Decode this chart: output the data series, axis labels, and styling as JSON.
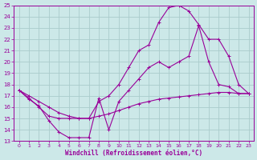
{
  "xlabel": "Windchill (Refroidissement éolien,°C)",
  "bg_color": "#cce8e8",
  "line_color": "#990099",
  "grid_color": "#aacccc",
  "xlim": [
    -0.5,
    23.5
  ],
  "ylim": [
    13,
    25
  ],
  "yticks": [
    13,
    14,
    15,
    16,
    17,
    18,
    19,
    20,
    21,
    22,
    23,
    24,
    25
  ],
  "xticks": [
    0,
    1,
    2,
    3,
    4,
    5,
    6,
    7,
    8,
    9,
    10,
    11,
    12,
    13,
    14,
    15,
    16,
    17,
    18,
    19,
    20,
    21,
    22,
    23
  ],
  "curve1_x": [
    0,
    1,
    2,
    3,
    4,
    5,
    6,
    7,
    8,
    9,
    10,
    11,
    12,
    13,
    14,
    15,
    16,
    17,
    18,
    19,
    20,
    21,
    22,
    23
  ],
  "curve1_y": [
    17.5,
    16.7,
    16.1,
    14.8,
    13.8,
    13.3,
    13.3,
    13.3,
    16.8,
    14.0,
    16.5,
    17.5,
    18.5,
    19.5,
    20.0,
    19.5,
    20.0,
    20.5,
    23.2,
    20.0,
    18.0,
    17.8,
    17.2,
    17.2
  ],
  "curve2_x": [
    0,
    1,
    2,
    3,
    4,
    5,
    6,
    7,
    8,
    9,
    10,
    11,
    12,
    13,
    14,
    15,
    16,
    17,
    18,
    19,
    20,
    21,
    22,
    23
  ],
  "curve2_y": [
    17.5,
    16.8,
    16.0,
    15.2,
    15.0,
    15.0,
    15.0,
    15.0,
    15.2,
    15.4,
    15.7,
    16.0,
    16.3,
    16.5,
    16.7,
    16.8,
    16.9,
    17.0,
    17.1,
    17.2,
    17.3,
    17.3,
    17.2,
    17.2
  ],
  "curve3_x": [
    0,
    1,
    2,
    3,
    4,
    5,
    6,
    7,
    8,
    9,
    10,
    11,
    12,
    13,
    14,
    15,
    16,
    17,
    18,
    19,
    20,
    21,
    22,
    23
  ],
  "curve3_y": [
    17.5,
    17.0,
    16.5,
    16.0,
    15.5,
    15.2,
    15.0,
    15.0,
    16.5,
    17.0,
    18.0,
    19.5,
    21.0,
    21.5,
    23.5,
    24.8,
    25.0,
    24.5,
    23.3,
    22.0,
    22.0,
    20.5,
    18.0,
    17.2
  ]
}
